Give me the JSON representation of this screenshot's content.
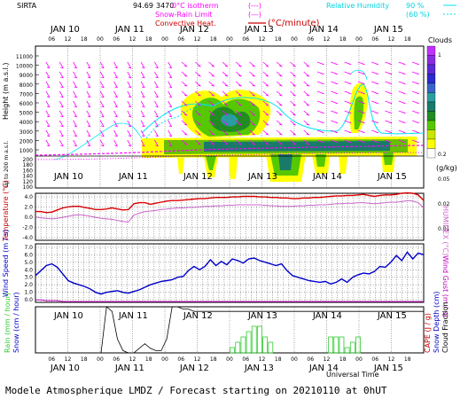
{
  "header": {
    "site": "SIRTA",
    "code": "94.69",
    "code_tail": "3470",
    "legend_isotherm": "0°C isotherm",
    "legend_snowrain": "Snow-Rain Limit",
    "legend_convective": "Convective Heat.",
    "legend_dashes": "(---)",
    "legend_units": "(°C/minute)",
    "rh_label": "Relative Humidity",
    "rh_90": "90 %",
    "rh_60": "(60 %)",
    "colors": {
      "isotherm": "#ff00ff",
      "convective": "#cc0000",
      "rh": "#00e5ee"
    }
  },
  "days": [
    "JAN 10",
    "JAN 11",
    "JAN 12",
    "JAN 13",
    "JAN 14",
    "JAN 15"
  ],
  "hours": [
    "06",
    "12",
    "18",
    "00",
    "06",
    "12",
    "18",
    "00",
    "06",
    "12",
    "18",
    "00",
    "06",
    "12",
    "18",
    "00",
    "06",
    "12",
    "18",
    "00",
    "06",
    "12",
    "18"
  ],
  "footer": {
    "universal_time": "Universal Time",
    "text": "Modele Atmospherique LMDZ / Forecast starting on 20210110 at 0hUT"
  },
  "chart_data": [
    {
      "type": "heatmap",
      "panel": "clouds",
      "ylabel_top": "Height (m a.s.l.)",
      "ylabel_bottom": "Up to 200 m a.s.l.",
      "yticks_upper": [
        "11000",
        "10000",
        "9000",
        "8000",
        "7000",
        "6000",
        "5000",
        "4000",
        "3000",
        "2000",
        "1000"
      ],
      "yticks_lower": [
        "200",
        "180",
        "160",
        "140",
        "120",
        "100"
      ],
      "colorbar_title": "Clouds",
      "colorbar_unit": "(g/kg)",
      "colorbar_ticks": [
        "1",
        "0.2",
        "0.05",
        "0.02",
        "0.01"
      ],
      "colorbar_colors": [
        "#ffffff",
        "#ffff00",
        "#c8e600",
        "#55c800",
        "#228b22",
        "#1a7a6a",
        "#2a9da0",
        "#3a64c8",
        "#2b2bd0",
        "#5a2ad8",
        "#8a2be2",
        "#c030ff"
      ]
    },
    {
      "type": "line",
      "panel": "temperature",
      "ylabel": "Temperature (°C)",
      "ylabel_right": "HUMIDEX (°C)",
      "yticks": [
        "4.0",
        "2.0",
        "0.0",
        "-2.0",
        "-4.0"
      ],
      "ylim": [
        -4,
        5
      ],
      "series": [
        {
          "color": "#dd0000",
          "values": [
            1.5,
            1.5,
            1.3,
            1.4,
            1.8,
            2.2,
            2.4,
            2.5,
            2.5,
            2.3,
            2.1,
            1.9,
            1.9,
            2.0,
            2.2,
            2.0,
            1.8,
            1.9,
            3.0,
            3.2,
            3.2,
            2.9,
            3.1,
            3.3,
            3.5,
            3.6,
            3.6,
            3.7,
            3.8,
            3.9,
            4.0,
            4.0,
            4.1,
            4.2,
            4.2,
            4.2,
            4.3,
            4.3,
            4.4,
            4.4,
            4.4,
            4.3,
            4.3,
            4.2,
            4.2,
            4.1,
            4.1,
            4.0,
            4.0,
            4.1,
            4.1,
            4.2,
            4.2,
            4.3,
            4.4,
            4.5,
            4.5,
            4.6,
            4.6,
            4.7,
            4.8,
            4.6,
            4.4,
            4.6,
            4.7,
            4.7,
            4.8,
            5.0,
            5.1,
            5.0,
            4.7,
            3.6
          ]
        },
        {
          "color": "#cc66cc",
          "values": [
            0.5,
            0.3,
            0.2,
            0.1,
            0.2,
            0.4,
            0.6,
            0.8,
            0.9,
            0.8,
            0.6,
            0.4,
            0.2,
            0.1,
            0.0,
            -0.2,
            -0.4,
            -0.5,
            0.8,
            1.2,
            1.5,
            1.6,
            1.7,
            1.9,
            2.0,
            2.1,
            2.2,
            2.2,
            2.3,
            2.3,
            2.4,
            2.5,
            2.5,
            2.6,
            2.6,
            2.7,
            2.7,
            2.8,
            2.8,
            2.8,
            2.8,
            2.8,
            2.7,
            2.6,
            2.6,
            2.5,
            2.5,
            2.5,
            2.6,
            2.6,
            2.7,
            2.7,
            2.8,
            2.8,
            2.9,
            3.0,
            3.0,
            3.1,
            3.1,
            3.2,
            3.2,
            3.1,
            3.0,
            3.1,
            3.2,
            3.3,
            3.3,
            3.4,
            3.6,
            3.5,
            3.2,
            2.2
          ]
        }
      ]
    },
    {
      "type": "line",
      "panel": "wind",
      "ylabel": "Wind Speed (m / s)",
      "ylabel_right": "Wind Gust (m / s)",
      "yticks": [
        "7.0",
        "6.0",
        "5.0",
        "4.0",
        "3.0",
        "2.0",
        "1.0",
        "0.0"
      ],
      "ylim": [
        0,
        7
      ],
      "series": [
        {
          "color": "#0000cc",
          "values": [
            3.2,
            3.8,
            4.4,
            4.6,
            4.2,
            3.4,
            2.6,
            2.3,
            2.1,
            1.9,
            1.6,
            1.2,
            1.0,
            1.2,
            1.3,
            1.4,
            1.2,
            1.1,
            1.3,
            1.5,
            1.8,
            2.1,
            2.3,
            2.5,
            2.6,
            2.7,
            3.0,
            3.1,
            3.8,
            4.3,
            3.9,
            4.3,
            5.1,
            4.4,
            4.9,
            4.5,
            5.2,
            5.0,
            4.7,
            5.2,
            5.3,
            5.0,
            4.8,
            4.6,
            4.4,
            4.6,
            3.8,
            3.2,
            3.0,
            2.8,
            2.6,
            2.5,
            2.4,
            2.5,
            2.2,
            2.4,
            2.8,
            2.4,
            3.0,
            3.3,
            3.5,
            3.4,
            3.7,
            4.3,
            4.2,
            4.8,
            5.6,
            5.0,
            6.0,
            5.2,
            5.9,
            5.7
          ]
        },
        {
          "color": "#c000c0",
          "values": [
            0.3,
            0.3,
            0.2,
            0.2,
            0.2,
            0.1,
            0.1,
            0.1,
            0.1,
            0.1,
            0.1,
            0.1,
            0.1,
            0.1,
            0.1,
            0.1,
            0.1,
            0.1,
            0.1,
            0.1,
            0.1,
            0.1,
            0.1,
            0.1,
            0.1,
            0.1,
            0.1,
            0.1,
            0.1,
            0.1,
            0.1,
            0.1,
            0.1,
            0.1,
            0.1,
            0.1,
            0.1,
            0.1,
            0.1,
            0.1,
            0.1,
            0.1,
            0.1,
            0.1,
            0.1,
            0.1,
            0.1,
            0.1,
            0.1,
            0.1,
            0.1,
            0.1,
            0.1,
            0.1,
            0.1,
            0.1,
            0.1,
            0.1,
            0.1,
            0.1,
            0.1,
            0.1,
            0.1,
            0.1,
            0.1,
            0.1,
            0.1,
            0.1,
            0.1,
            0.1,
            0.1,
            0.1
          ]
        }
      ]
    },
    {
      "type": "bar",
      "panel": "precipitation",
      "ylabel_left1": "Rain (mm / hour)",
      "ylabel_left2": "Snow (cm / hour)",
      "ylabel_right1": "CAPE (J / g)",
      "ylabel_right2": "Snow Depth (cm)",
      "ylabel_right3": "Cloud Fraction",
      "cloud_fraction": {
        "color": "#000000",
        "values": [
          0.0,
          0.0,
          0.0,
          0.0,
          0.0,
          0.0,
          0.0,
          0.0,
          0.0,
          0.0,
          0.0,
          0.0,
          0.0,
          1.0,
          0.9,
          0.3,
          0.05,
          0.0,
          0.0,
          0.1,
          0.2,
          0.1,
          0.05,
          0.05,
          0.3,
          1.0,
          1.0,
          0.95,
          0.95,
          0.9,
          0.9,
          0.9,
          0.9,
          0.9,
          0.9,
          0.9,
          0.9,
          0.9,
          0.9,
          0.9,
          0.9,
          0.9,
          0.9,
          0.9,
          0.9,
          0.9,
          0.9,
          0.9,
          0.9,
          0.9,
          0.9,
          0.9,
          0.9,
          0.9,
          0.9,
          0.9,
          0.9,
          0.9,
          0.9,
          0.9,
          0.9,
          0.9,
          0.9,
          0.9,
          0.9,
          0.9,
          0.9,
          0.9,
          0.9,
          0.9,
          0.9,
          0.9
        ]
      },
      "rain": {
        "color": "#33cc33",
        "values": [
          0,
          0,
          0,
          0,
          0,
          0,
          0,
          0,
          0,
          0,
          0,
          0,
          0,
          0,
          0,
          0,
          0,
          0,
          0,
          0,
          0,
          0,
          0,
          0,
          0,
          0,
          0,
          0,
          0,
          0,
          0,
          0,
          0,
          0,
          0,
          0,
          0.1,
          0.2,
          0.3,
          0.4,
          0.5,
          0.5,
          0.3,
          0.2,
          0,
          0,
          0,
          0,
          0,
          0,
          0,
          0,
          0,
          0,
          0.3,
          0.3,
          0.3,
          0.1,
          0.2,
          0.3,
          0,
          0,
          0,
          0,
          0,
          0,
          0,
          0,
          0,
          0,
          0,
          0
        ]
      }
    },
    {
      "type": "heatmap",
      "panel": "wind-barbs",
      "note": "wind direction arrows over height",
      "color": "#ff00ff"
    }
  ]
}
